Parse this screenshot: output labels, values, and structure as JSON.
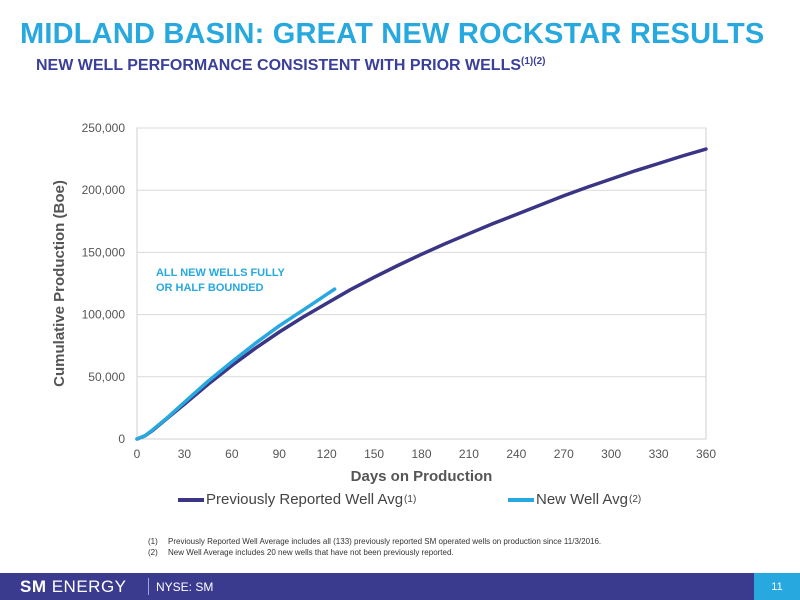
{
  "slide": {
    "title": "MIDLAND BASIN: GREAT NEW ROCKSTAR RESULTS",
    "subtitle": "NEW WELL PERFORMANCE CONSISTENT WITH PRIOR WELLS",
    "subtitle_notes": "(1)(2)",
    "page_number": "11"
  },
  "footer": {
    "brand_bold": "SM",
    "brand_rest": " ENERGY",
    "ticker": "NYSE: SM"
  },
  "footnotes": [
    {
      "num": "(1)",
      "text": "Previously Reported Well Average includes all (133) previously reported SM operated wells on production since 11/3/2016."
    },
    {
      "num": "(2)",
      "text": "New Well Average includes 20 new wells that have not been previously reported."
    }
  ],
  "chart_data": {
    "type": "line",
    "xlabel": "Days on Production",
    "ylabel": "Cumulative Production (Boe)",
    "xlim": [
      0,
      360
    ],
    "ylim": [
      0,
      250000
    ],
    "xticks": [
      0,
      30,
      60,
      90,
      120,
      150,
      180,
      210,
      240,
      270,
      300,
      330,
      360
    ],
    "yticks": [
      0,
      50000,
      100000,
      150000,
      200000,
      250000
    ],
    "ytick_labels": [
      "0",
      "50,000",
      "100,000",
      "150,000",
      "200,000",
      "250,000"
    ],
    "grid": "horizontal",
    "legend_position": "bottom",
    "annotation": {
      "lines": [
        "ALL NEW WELLS FULLY",
        "OR HALF BOUNDED"
      ],
      "color": "#27a8df",
      "at": {
        "x": 12,
        "y": 131000
      }
    },
    "series": [
      {
        "name": "Previously Reported Well Avg",
        "note": "(1)",
        "color": "#3a3584",
        "x": [
          0,
          5,
          10,
          20,
          30,
          45,
          60,
          75,
          90,
          105,
          120,
          135,
          150,
          165,
          180,
          195,
          210,
          225,
          240,
          255,
          270,
          285,
          300,
          315,
          330,
          345,
          360
        ],
        "y": [
          0,
          2500,
          7000,
          17500,
          28000,
          44000,
          59000,
          73000,
          86000,
          98000,
          109000,
          120000,
          130000,
          139500,
          148500,
          157000,
          165000,
          173000,
          180500,
          188000,
          195500,
          202500,
          209000,
          215500,
          221500,
          227500,
          233000
        ]
      },
      {
        "name": "New Well Avg",
        "note": "(2)",
        "color": "#27a8df",
        "x": [
          0,
          5,
          10,
          20,
          30,
          45,
          60,
          75,
          90,
          105,
          115,
          125
        ],
        "y": [
          0,
          2600,
          7500,
          18000,
          29500,
          46500,
          62000,
          77000,
          91000,
          103500,
          112000,
          120500
        ]
      }
    ]
  }
}
